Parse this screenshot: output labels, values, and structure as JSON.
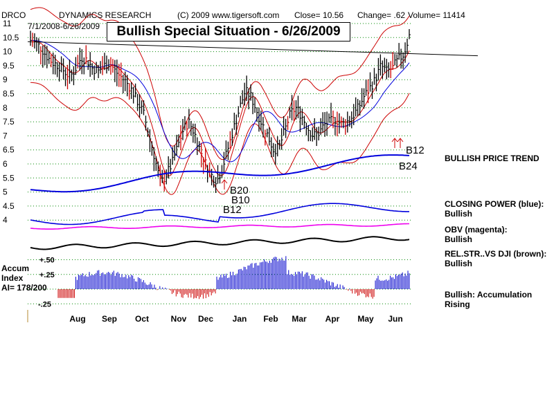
{
  "header": {
    "symbol": "DRCO",
    "company": "DYNAMICS RESEARCH",
    "source": "(C) 2009 www.tigersoft.com",
    "close_label": "Close= 10.56",
    "change_label": "Change= .62",
    "volume_label": "Volume= 11414"
  },
  "chart_title": "Bullish Special Situation - 6/26/2009",
  "date_range": "7/1/2008-6/26/2009",
  "indicators_panel": {
    "price_trend": "BULLISH PRICE TREND",
    "closing_power_label": "CLOSING POWER (blue):",
    "closing_power_status": "Bullish",
    "obv_label": "OBV (magenta):",
    "obv_status": "Bullish",
    "relstr_label": "REL.STR..VS DJI (brown):",
    "relstr_status": "Bullish",
    "accum_status": "Bullish: Accumulation Rising"
  },
  "accum_panel": {
    "title_line1": "Accum",
    "title_line2": "Index",
    "ai_value": "AI= 178/200",
    "tick_labels": [
      "+.50",
      "+.25",
      "-.25"
    ],
    "ticks": [
      0.5,
      0.25,
      -0.25
    ]
  },
  "signals": [
    "B12",
    "B10",
    "B20",
    "B12",
    "B24"
  ],
  "colors": {
    "price_bars": "#000000",
    "up_day": "#cc0000",
    "closing_power": "#0000dd",
    "obv": "#ee00ee",
    "bands": "#cc0000",
    "moving_average_blue": "#0000dd",
    "accum_bars": "#0000cc",
    "gridline": "#008800"
  },
  "chart_data": {
    "type": "line",
    "price_axis": {
      "tick_labels": [
        "11",
        "10.5",
        "10",
        "9.5",
        "9",
        "8.5",
        "8",
        "7.5",
        "7",
        "6.5",
        "6",
        "5.5",
        "5",
        "4.5",
        "4"
      ],
      "ticks": [
        11,
        10.5,
        10,
        9.5,
        9,
        8.5,
        8,
        7.5,
        7,
        6.5,
        6,
        5.5,
        5,
        4.5,
        4
      ],
      "range": [
        3.75,
        11
      ]
    },
    "x_axis": {
      "tick_labels": [
        "Aug",
        "Sep",
        "Oct",
        "Nov",
        "Dec",
        "Jan",
        "Feb",
        "Mar",
        "Apr",
        "May",
        "Jun"
      ]
    },
    "grid": true,
    "series": [
      {
        "name": "",
        "values": [
          10.4,
          10.3,
          10.1,
          9.8,
          9.6,
          9.5,
          9.3,
          9.1,
          9.4,
          9.8,
          9.7,
          9.4,
          9.3,
          9.5,
          9.6,
          9.3,
          9.1,
          8.9,
          8.6,
          8.2,
          7.8,
          7.0,
          6.2,
          5.3,
          5.6,
          6.0,
          6.6,
          7.2,
          7.5,
          7.1,
          6.5,
          6.0,
          5.6,
          5.4,
          5.9,
          6.6,
          7.3,
          8.0,
          8.6,
          8.4,
          7.9,
          7.4,
          7.0,
          6.5,
          6.6,
          7.2,
          7.8,
          8.0,
          7.7,
          7.3,
          7.0,
          7.1,
          7.4,
          7.5,
          7.6,
          7.4,
          7.5,
          7.7,
          8.0,
          8.4,
          8.7,
          9.0,
          9.5,
          9.3,
          9.4,
          9.7,
          9.9,
          10.56
        ]
      }
    ]
  }
}
